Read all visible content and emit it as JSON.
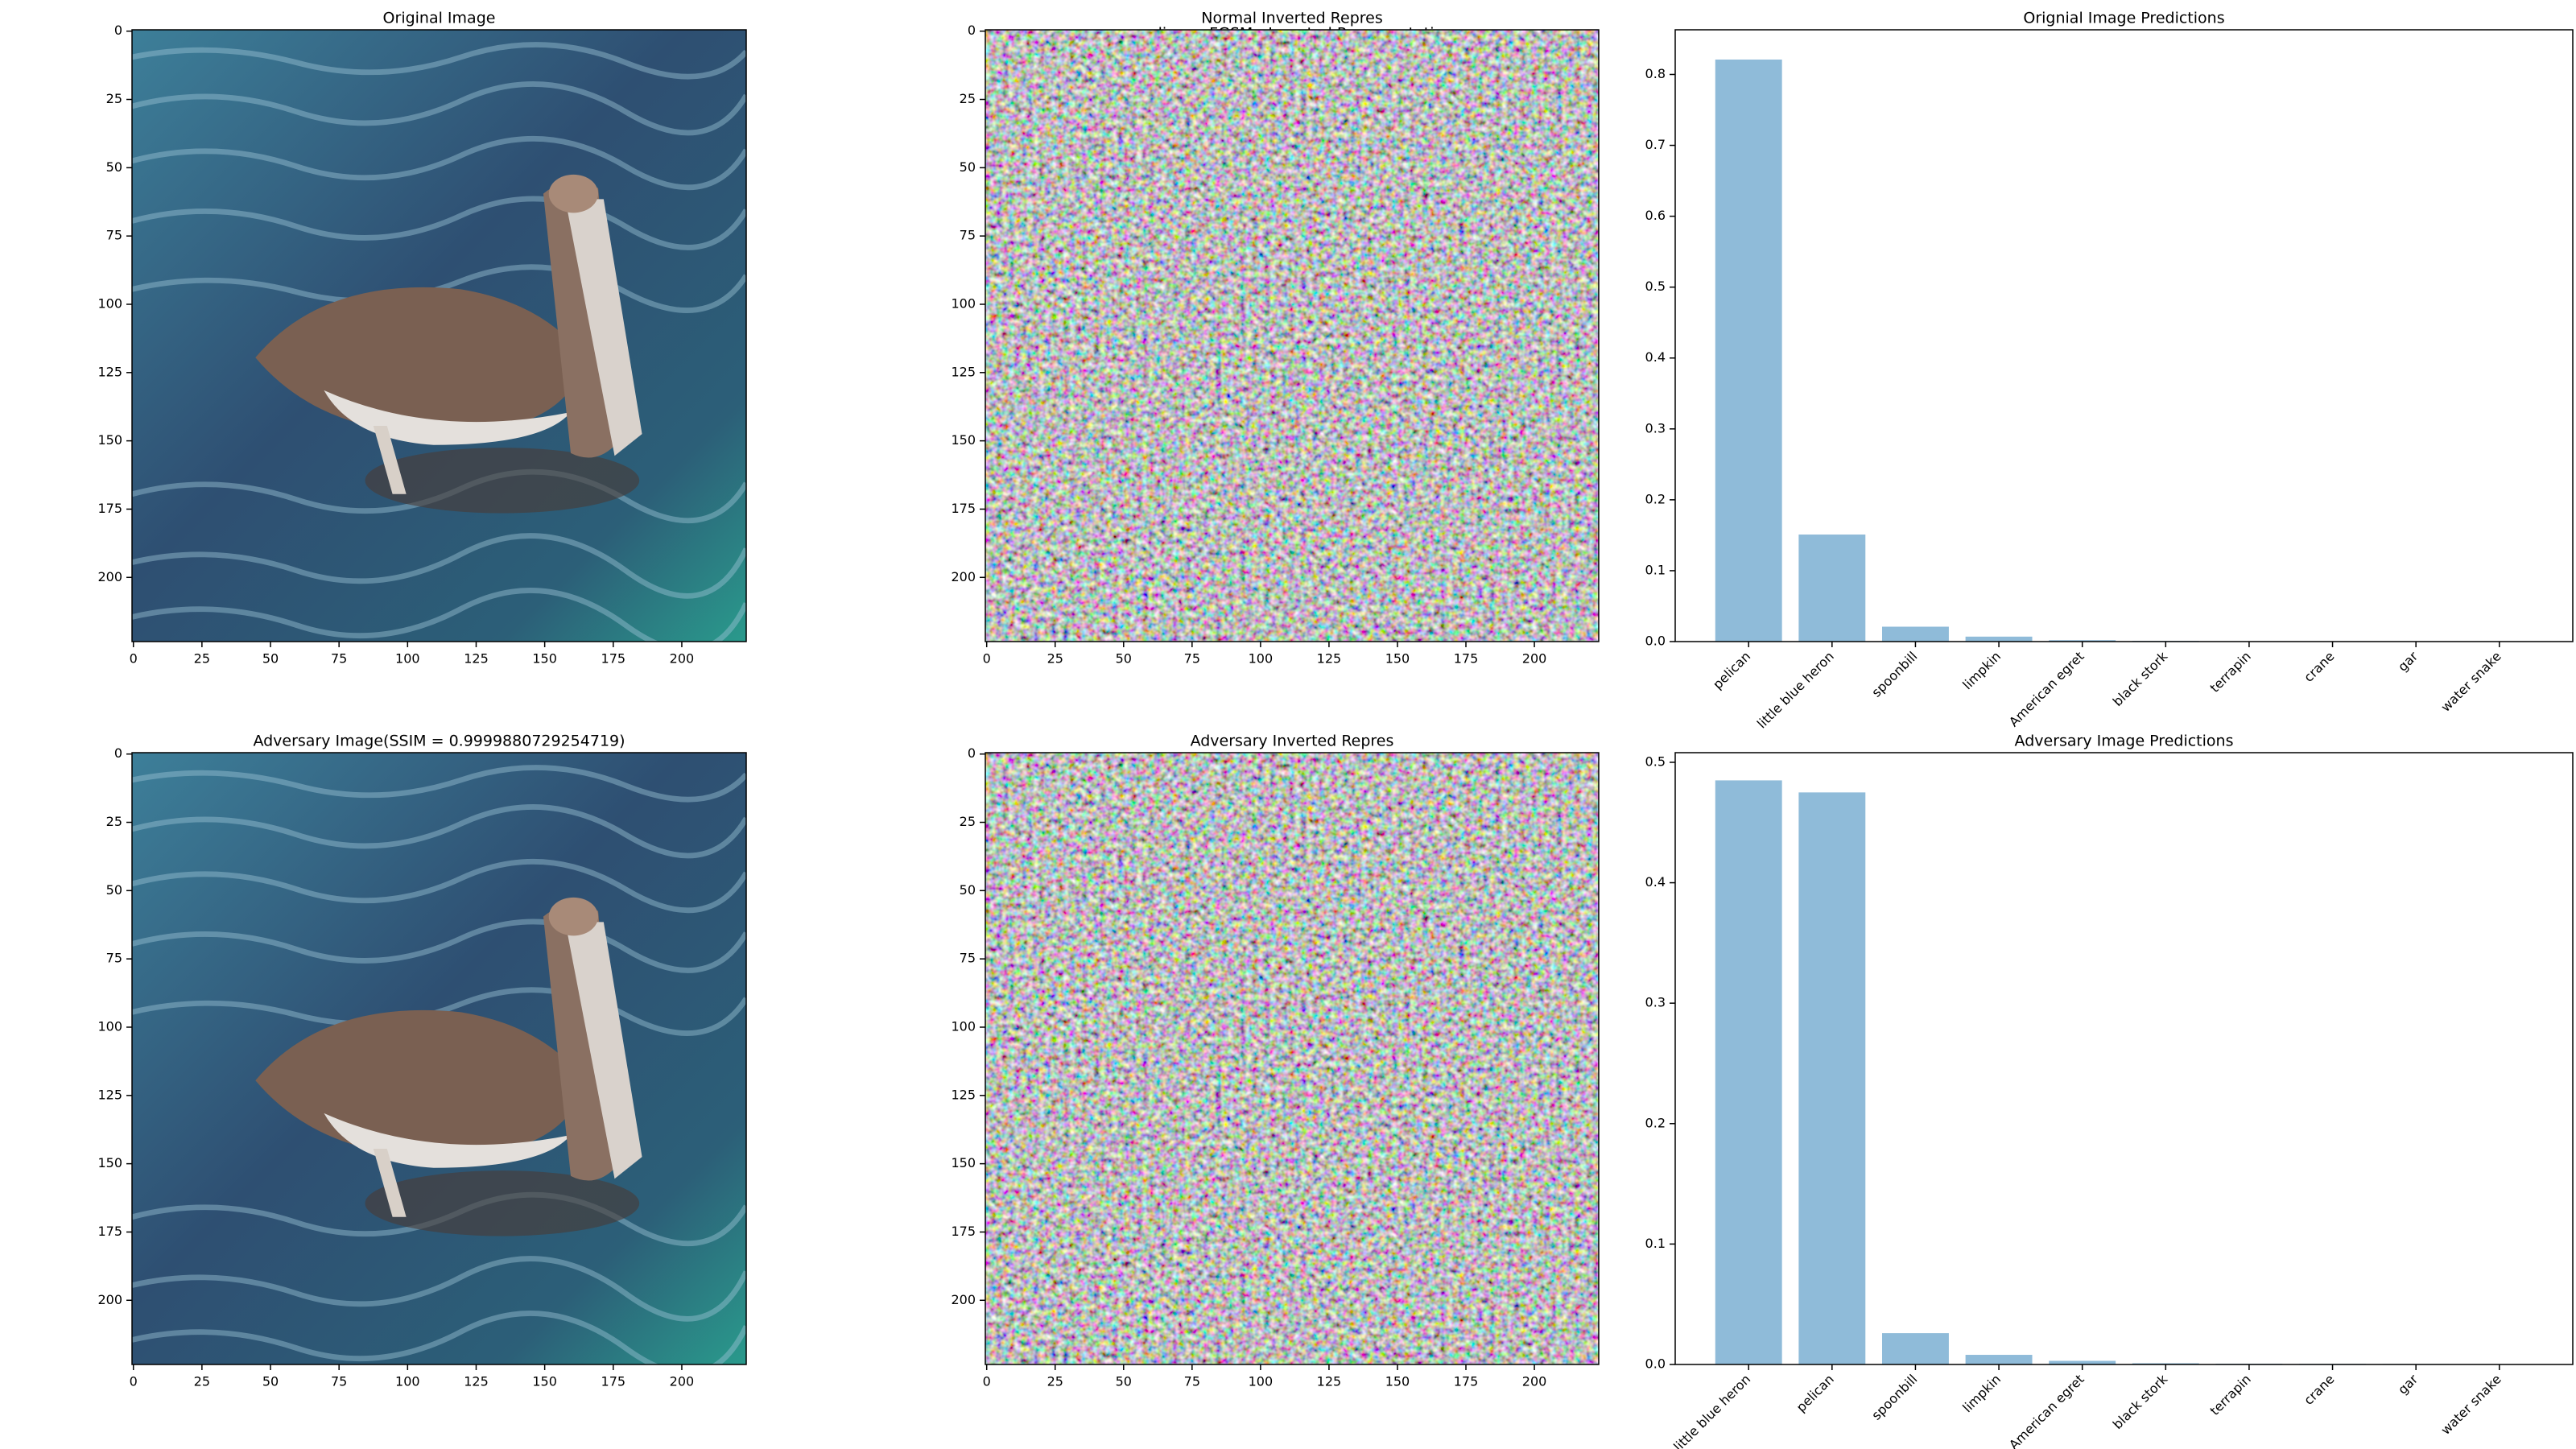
{
  "title": "pelican - FGSM - Inverted Representation",
  "chart_data": [
    {
      "type": "image",
      "title": "Original Image",
      "xlim": [
        -0.5,
        223.5
      ],
      "ylim": [
        223.5,
        -0.5
      ],
      "xticks": [
        0,
        25,
        50,
        75,
        100,
        125,
        150,
        175,
        200
      ],
      "yticks": [
        0,
        25,
        50,
        75,
        100,
        125,
        150,
        175,
        200
      ]
    },
    {
      "type": "noise",
      "title": "Normal Inverted Repres",
      "xlim": [
        -0.5,
        223.5
      ],
      "ylim": [
        223.5,
        -0.5
      ],
      "xticks": [
        0,
        25,
        50,
        75,
        100,
        125,
        150,
        175,
        200
      ],
      "yticks": [
        0,
        25,
        50,
        75,
        100,
        125,
        150,
        175,
        200
      ]
    },
    {
      "type": "bar",
      "title": "Orignial Image Predictions",
      "categories": [
        "pelican",
        "little blue heron",
        "spoonbill",
        "limpkin",
        "American egret",
        "black stork",
        "terrapin",
        "crane",
        "gar",
        "water snake"
      ],
      "values": [
        0.821,
        0.151,
        0.021,
        0.007,
        0.002,
        0.001,
        0.0005,
        0.0004,
        0.0003,
        0.0002
      ],
      "color": "#8fbbd9",
      "ylim": [
        0,
        0.863
      ],
      "yticks": [
        {
          "value": 0,
          "label": "0.0"
        },
        0.1,
        0.2,
        0.3,
        0.4,
        0.5,
        0.6,
        0.7,
        0.8
      ]
    },
    {
      "type": "image",
      "title": "Adversary Image(SSIM = 0.9999880729254719)",
      "xlim": [
        -0.5,
        223.5
      ],
      "ylim": [
        223.5,
        -0.5
      ],
      "xticks": [
        0,
        25,
        50,
        75,
        100,
        125,
        150,
        175,
        200
      ],
      "yticks": [
        0,
        25,
        50,
        75,
        100,
        125,
        150,
        175,
        200
      ]
    },
    {
      "type": "noise",
      "title": "Adversary Inverted Repres",
      "xlim": [
        -0.5,
        223.5
      ],
      "ylim": [
        223.5,
        -0.5
      ],
      "xticks": [
        0,
        25,
        50,
        75,
        100,
        125,
        150,
        175,
        200
      ],
      "yticks": [
        0,
        25,
        50,
        75,
        100,
        125,
        150,
        175,
        200
      ]
    },
    {
      "type": "bar",
      "title": "Adversary Image Predictions",
      "categories": [
        "little blue heron",
        "pelican",
        "spoonbill",
        "limpkin",
        "American egret",
        "black stork",
        "terrapin",
        "crane",
        "gar",
        "water snake"
      ],
      "values": [
        0.485,
        0.475,
        0.026,
        0.008,
        0.003,
        0.001,
        0.0006,
        0.0005,
        0.0004,
        0.0003
      ],
      "color": "#8fbbd9",
      "ylim": [
        0,
        0.508
      ],
      "yticks": [
        {
          "value": 0,
          "label": "0.0"
        },
        0.1,
        0.2,
        0.3,
        0.4,
        0.5
      ]
    }
  ]
}
